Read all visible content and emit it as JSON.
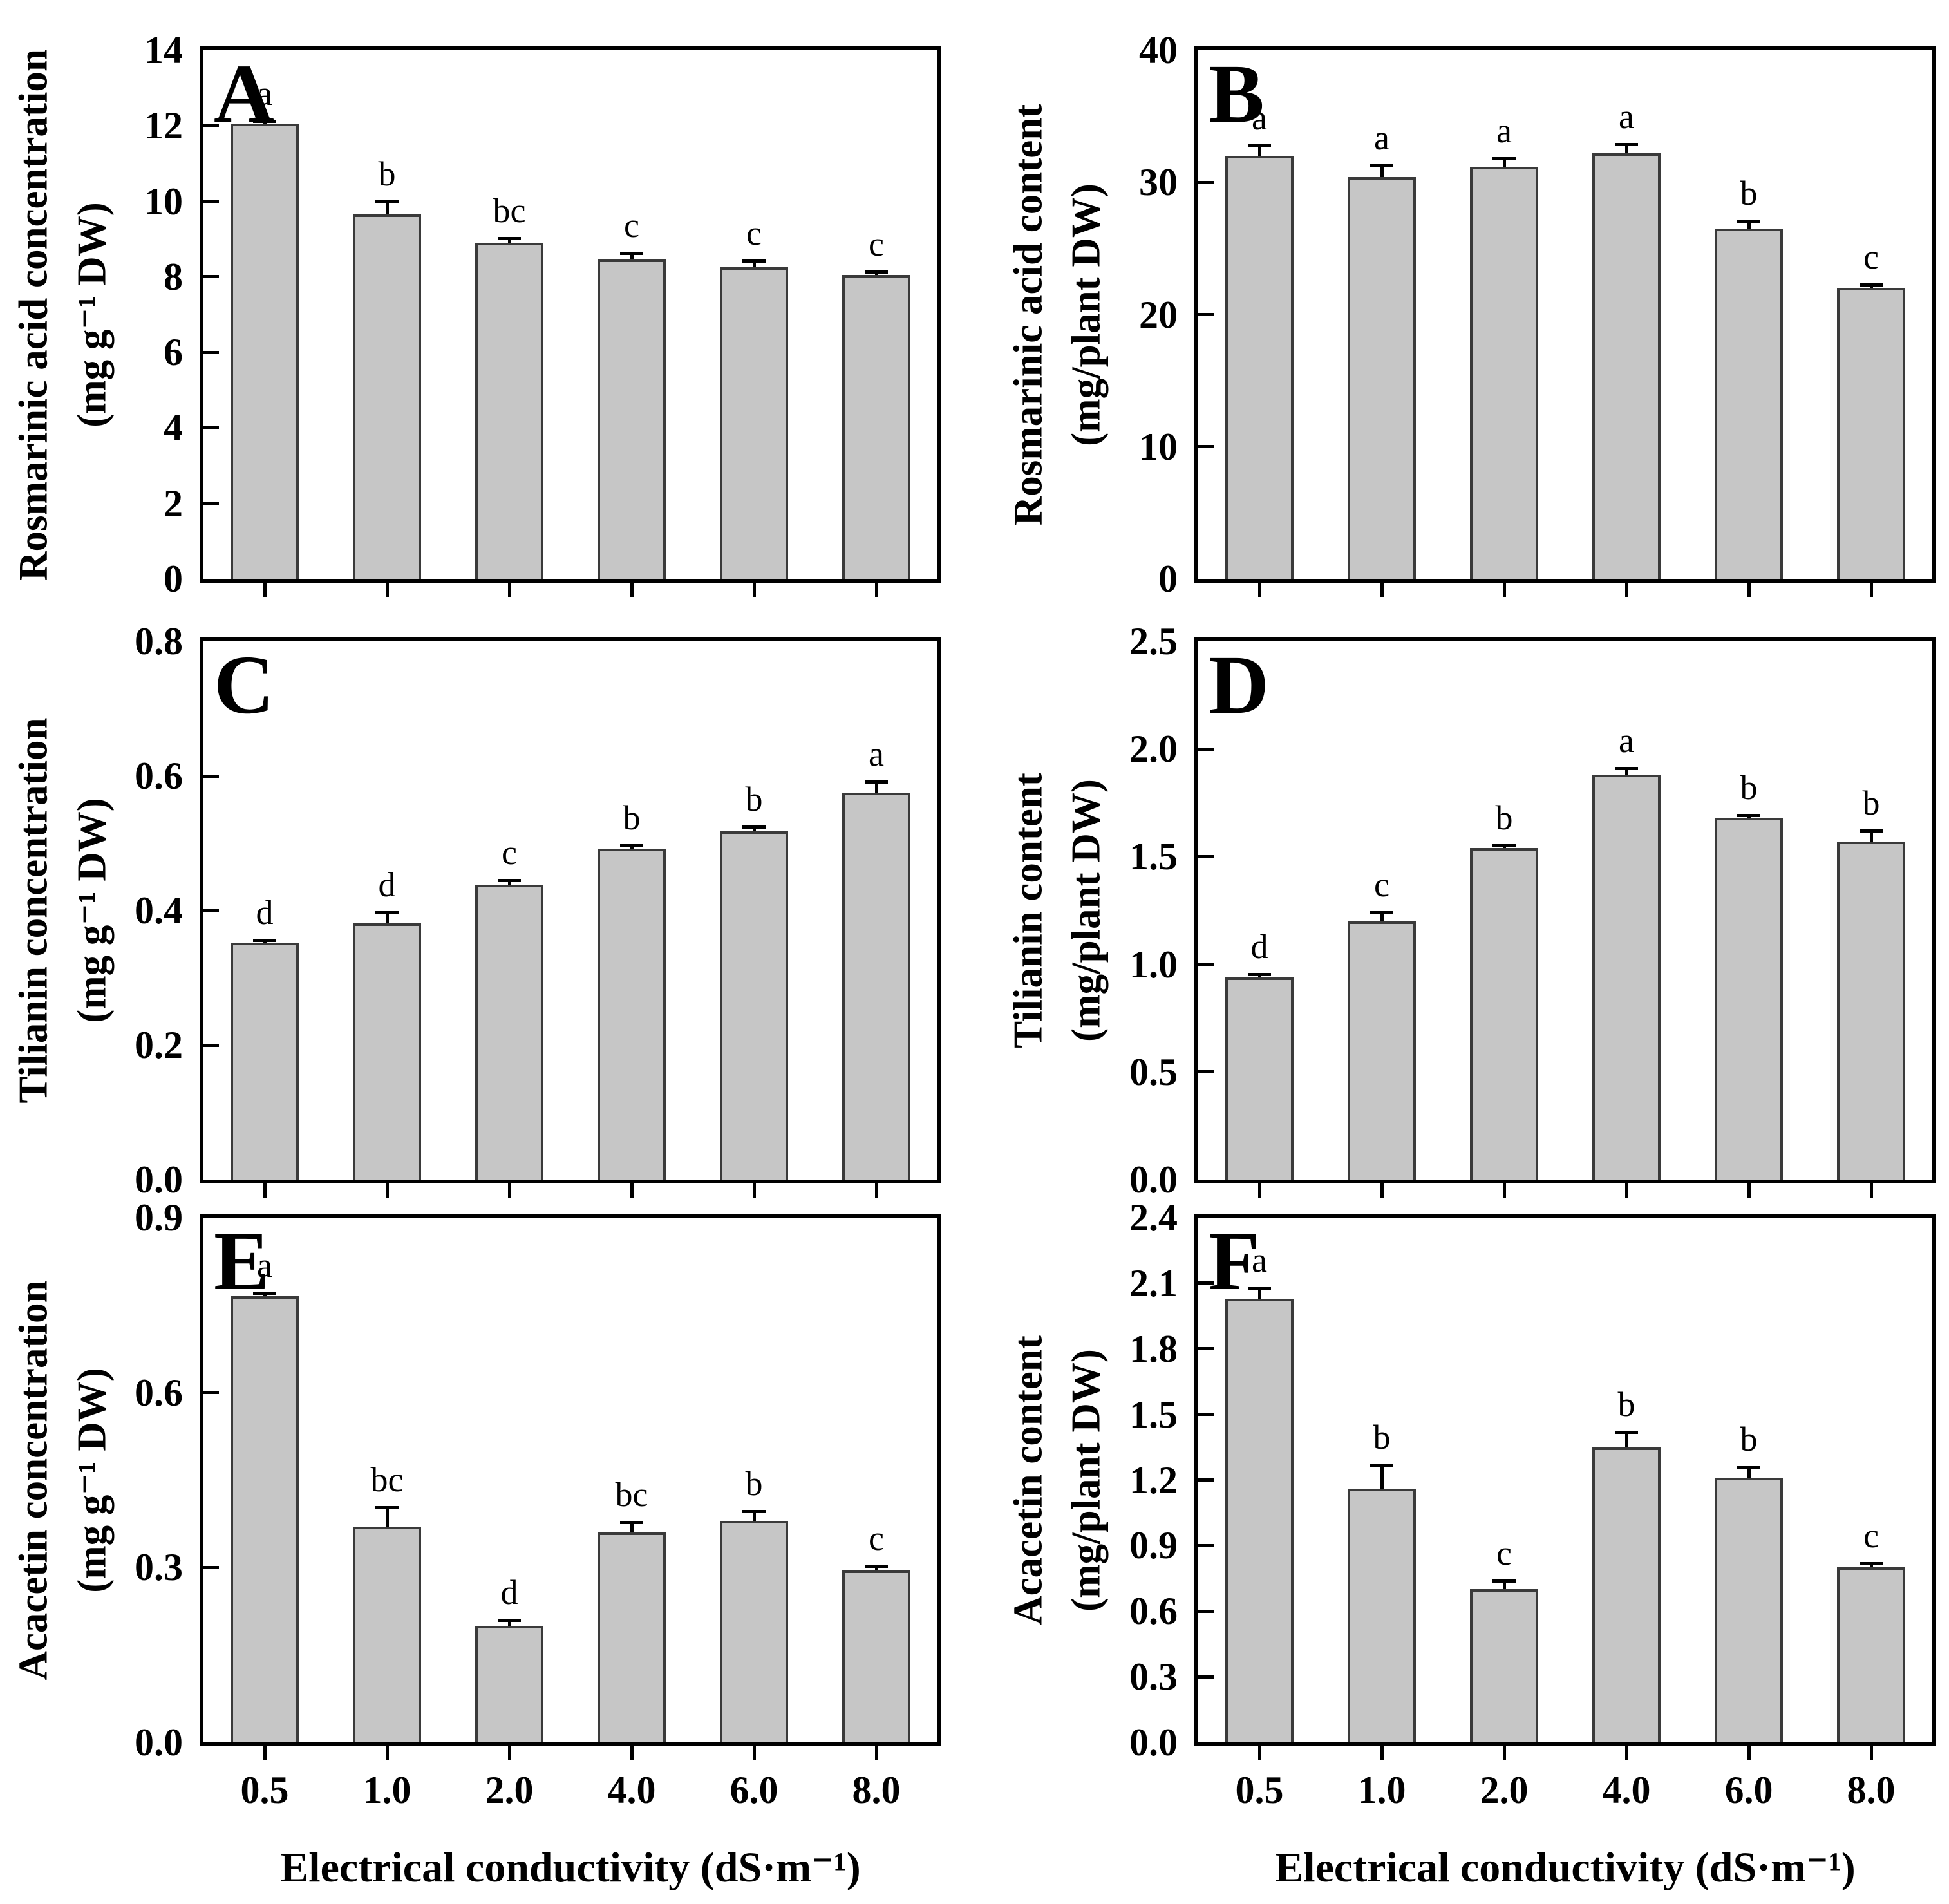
{
  "figure": {
    "background": "#ffffff",
    "axis_color": "#000000",
    "bar_fill": "#c6c6c6",
    "bar_border": "#3a3a3a",
    "x_axis_title": "Electrical conductivity (dS·m⁻¹)"
  },
  "chart_data": [
    {
      "type": "bar",
      "panel": "A",
      "ylabel": "Rosmarinic acid concentration",
      "yunit": "(mg g⁻¹ DW)",
      "ylim": [
        0,
        14
      ],
      "ytick_values": [
        0,
        2,
        4,
        6,
        8,
        10,
        12,
        14
      ],
      "ytick_labels": [
        "0",
        "2",
        "4",
        "6",
        "8",
        "10",
        "12",
        "14"
      ],
      "categories": [
        "0.5",
        "1.0",
        "2.0",
        "4.0",
        "6.0",
        "8.0"
      ],
      "values": [
        12.05,
        9.65,
        8.9,
        8.45,
        8.25,
        8.05
      ],
      "errors": [
        0.08,
        0.35,
        0.12,
        0.18,
        0.18,
        0.08
      ],
      "sig_letters": [
        "a",
        "b",
        "bc",
        "c",
        "c",
        "c"
      ],
      "show_x_tick_labels": false,
      "xlabel": ""
    },
    {
      "type": "bar",
      "panel": "B",
      "ylabel": "Rosmarinic acid content",
      "yunit": "(mg/plant DW)",
      "ylim": [
        0,
        40
      ],
      "ytick_values": [
        0,
        10,
        20,
        30,
        40
      ],
      "ytick_labels": [
        "0",
        "10",
        "20",
        "30",
        "40"
      ],
      "categories": [
        "0.5",
        "1.0",
        "2.0",
        "4.0",
        "6.0",
        "8.0"
      ],
      "values": [
        32.0,
        30.4,
        31.2,
        32.2,
        26.5,
        22.0
      ],
      "errors": [
        0.8,
        0.9,
        0.6,
        0.7,
        0.6,
        0.25
      ],
      "sig_letters": [
        "a",
        "a",
        "a",
        "a",
        "b",
        "c"
      ],
      "show_x_tick_labels": false,
      "xlabel": ""
    },
    {
      "type": "bar",
      "panel": "C",
      "ylabel": "Tilianin concentration",
      "yunit": "(mg g⁻¹ DW)",
      "ylim": [
        0,
        0.8
      ],
      "ytick_values": [
        0,
        0.2,
        0.4,
        0.6,
        0.8
      ],
      "ytick_labels": [
        "0.0",
        "0.2",
        "0.4",
        "0.6",
        "0.8"
      ],
      "categories": [
        "0.5",
        "1.0",
        "2.0",
        "4.0",
        "6.0",
        "8.0"
      ],
      "values": [
        0.352,
        0.381,
        0.438,
        0.492,
        0.518,
        0.575
      ],
      "errors": [
        0.004,
        0.016,
        0.007,
        0.005,
        0.006,
        0.016
      ],
      "sig_letters": [
        "d",
        "d",
        "c",
        "b",
        "b",
        "a"
      ],
      "show_x_tick_labels": false,
      "xlabel": ""
    },
    {
      "type": "bar",
      "panel": "D",
      "ylabel": "Tilianin content",
      "yunit": "(mg/plant DW)",
      "ylim": [
        0,
        2.5
      ],
      "ytick_values": [
        0,
        0.5,
        1.0,
        1.5,
        2.0,
        2.5
      ],
      "ytick_labels": [
        "0.0",
        "0.5",
        "1.0",
        "1.5",
        "2.0",
        "2.5"
      ],
      "categories": [
        "0.5",
        "1.0",
        "2.0",
        "4.0",
        "6.0",
        "8.0"
      ],
      "values": [
        0.94,
        1.2,
        1.54,
        1.88,
        1.68,
        1.57
      ],
      "errors": [
        0.015,
        0.04,
        0.012,
        0.03,
        0.012,
        0.05
      ],
      "sig_letters": [
        "d",
        "c",
        "b",
        "a",
        "b",
        "b"
      ],
      "show_x_tick_labels": false,
      "xlabel": ""
    },
    {
      "type": "bar",
      "panel": "E",
      "ylabel": "Acacetin concentration",
      "yunit": "(mg g⁻¹ DW)",
      "ylim": [
        0,
        0.9
      ],
      "ytick_values": [
        0,
        0.3,
        0.6,
        0.9
      ],
      "ytick_labels": [
        "0.0",
        "0.3",
        "0.6",
        "0.9"
      ],
      "categories": [
        "0.5",
        "1.0",
        "2.0",
        "4.0",
        "6.0",
        "8.0"
      ],
      "values": [
        0.765,
        0.37,
        0.2,
        0.36,
        0.38,
        0.295
      ],
      "errors": [
        0.006,
        0.033,
        0.01,
        0.018,
        0.016,
        0.008
      ],
      "sig_letters": [
        "a",
        "bc",
        "d",
        "bc",
        "b",
        "c"
      ],
      "show_x_tick_labels": true,
      "xlabel": "Electrical conductivity (dS·m⁻¹)"
    },
    {
      "type": "bar",
      "panel": "F",
      "ylabel": "Acacetin content",
      "yunit": "(mg/plant DW)",
      "ylim": [
        0,
        2.4
      ],
      "ytick_values": [
        0,
        0.3,
        0.6,
        0.9,
        1.2,
        1.5,
        1.8,
        2.1,
        2.4
      ],
      "ytick_labels": [
        "0.0",
        "0.3",
        "0.6",
        "0.9",
        "1.2",
        "1.5",
        "1.8",
        "2.1",
        "2.4"
      ],
      "categories": [
        "0.5",
        "1.0",
        "2.0",
        "4.0",
        "6.0",
        "8.0"
      ],
      "values": [
        2.03,
        1.16,
        0.7,
        1.35,
        1.21,
        0.8
      ],
      "errors": [
        0.05,
        0.11,
        0.04,
        0.07,
        0.05,
        0.02
      ],
      "sig_letters": [
        "a",
        "b",
        "c",
        "b",
        "b",
        "c"
      ],
      "show_x_tick_labels": true,
      "xlabel": "Electrical conductivity (dS·m⁻¹)"
    }
  ]
}
